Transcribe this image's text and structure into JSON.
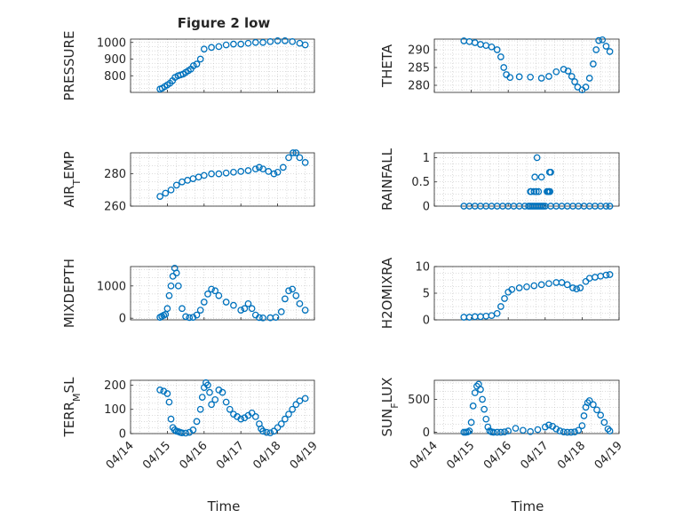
{
  "figure": {
    "title": "Figure 2 low",
    "xlabel": "Time",
    "marker_color": "#0072BD",
    "x_ticks": [
      "04/14",
      "04/15",
      "04/16",
      "04/17",
      "04/18",
      "04/19"
    ]
  },
  "chart_data": [
    {
      "type": "scatter",
      "ylabel": "PRESSURE",
      "title": "Figure 2 low",
      "xlim": [
        0,
        5
      ],
      "ylim": [
        700,
        1020
      ],
      "yticks": [
        800,
        900,
        1000
      ],
      "x": [
        0.8,
        0.86,
        0.93,
        1.0,
        1.07,
        1.14,
        1.21,
        1.29,
        1.36,
        1.43,
        1.5,
        1.57,
        1.64,
        1.71,
        1.8,
        1.9,
        2.0,
        2.2,
        2.4,
        2.6,
        2.8,
        3.0,
        3.2,
        3.4,
        3.6,
        3.8,
        4.0,
        4.2,
        4.4,
        4.6,
        4.75
      ],
      "y": [
        720,
        725,
        735,
        745,
        755,
        770,
        790,
        800,
        805,
        810,
        820,
        830,
        840,
        860,
        870,
        900,
        960,
        970,
        975,
        985,
        990,
        990,
        995,
        1000,
        1000,
        1005,
        1010,
        1010,
        1005,
        995,
        985
      ]
    },
    {
      "type": "scatter",
      "ylabel": "THETA",
      "xlim": [
        0,
        5
      ],
      "ylim": [
        278,
        293
      ],
      "yticks": [
        280,
        285,
        290
      ],
      "x": [
        0.8,
        0.95,
        1.1,
        1.25,
        1.4,
        1.55,
        1.7,
        1.8,
        1.88,
        1.95,
        2.05,
        2.3,
        2.6,
        2.9,
        3.1,
        3.3,
        3.5,
        3.62,
        3.72,
        3.8,
        3.88,
        4.0,
        4.1,
        4.2,
        4.3,
        4.38,
        4.45,
        4.55,
        4.65,
        4.75
      ],
      "y": [
        292.5,
        292.3,
        292,
        291.5,
        291.2,
        290.8,
        290,
        288,
        285,
        283,
        282.2,
        282.4,
        282.3,
        282,
        282.5,
        283.8,
        284.5,
        284,
        282.5,
        281,
        279.5,
        278.7,
        279.5,
        282,
        286,
        290,
        292.6,
        292.8,
        291,
        289.5
      ]
    },
    {
      "type": "scatter",
      "ylabel": "AIR_TEMP",
      "xlim": [
        0,
        5
      ],
      "ylim": [
        260,
        293
      ],
      "yticks": [
        260,
        280
      ],
      "x": [
        0.8,
        0.95,
        1.1,
        1.25,
        1.4,
        1.55,
        1.7,
        1.85,
        2.0,
        2.2,
        2.4,
        2.6,
        2.8,
        3.0,
        3.2,
        3.4,
        3.5,
        3.6,
        3.75,
        3.9,
        4.0,
        4.15,
        4.3,
        4.42,
        4.5,
        4.6,
        4.75
      ],
      "y": [
        266,
        268,
        270,
        273,
        275,
        276,
        277,
        278,
        279,
        280,
        280,
        280.5,
        281,
        281.5,
        282,
        283,
        284,
        283,
        281.5,
        280,
        281,
        284,
        290,
        293,
        293,
        290,
        287
      ]
    },
    {
      "type": "scatter",
      "ylabel": "RAINFALL",
      "xlim": [
        0,
        5
      ],
      "ylim": [
        0,
        1.1
      ],
      "yticks": [
        0,
        0.5,
        1
      ],
      "x": [
        0.8,
        0.95,
        1.1,
        1.25,
        1.4,
        1.55,
        1.7,
        1.85,
        2.0,
        2.15,
        2.3,
        2.45,
        2.55,
        2.6,
        2.65,
        2.7,
        2.75,
        2.8,
        2.85,
        2.9,
        2.95,
        3.0,
        3.15,
        3.3,
        3.45,
        3.6,
        3.75,
        3.9,
        4.05,
        4.2,
        4.35,
        4.5,
        4.65,
        4.75,
        2.6,
        2.7,
        2.72,
        2.78,
        2.9,
        3.05,
        3.1,
        3.12,
        3.15,
        2.62,
        2.76,
        2.82,
        3.08,
        3.13
      ],
      "y": [
        0,
        0,
        0,
        0,
        0,
        0,
        0,
        0,
        0,
        0,
        0,
        0,
        0,
        0,
        0,
        0,
        0,
        0,
        0,
        0,
        0,
        0,
        0,
        0,
        0,
        0,
        0,
        0,
        0,
        0,
        0,
        0,
        0,
        0,
        0.3,
        0.3,
        0.6,
        1.0,
        0.6,
        0.3,
        0.3,
        0.7,
        0.7,
        0.3,
        0.3,
        0.3,
        0.3,
        0.3
      ]
    },
    {
      "type": "scatter",
      "ylabel": "MIXDEPTH",
      "xlim": [
        0,
        5
      ],
      "ylim": [
        -50,
        1600
      ],
      "yticks": [
        0,
        1000
      ],
      "x": [
        0.8,
        0.85,
        0.9,
        0.95,
        1.0,
        1.05,
        1.1,
        1.15,
        1.2,
        1.25,
        1.3,
        1.4,
        1.5,
        1.6,
        1.7,
        1.8,
        1.9,
        2.0,
        2.1,
        2.2,
        2.3,
        2.4,
        2.6,
        2.8,
        3.0,
        3.1,
        3.2,
        3.3,
        3.4,
        3.5,
        3.6,
        3.8,
        3.95,
        4.1,
        4.2,
        4.3,
        4.4,
        4.5,
        4.6,
        4.75
      ],
      "y": [
        30,
        60,
        90,
        120,
        300,
        700,
        1000,
        1300,
        1550,
        1400,
        1000,
        300,
        50,
        20,
        30,
        100,
        250,
        500,
        750,
        900,
        850,
        700,
        500,
        400,
        250,
        300,
        450,
        300,
        100,
        20,
        10,
        15,
        30,
        200,
        600,
        850,
        900,
        700,
        450,
        250
      ]
    },
    {
      "type": "scatter",
      "ylabel": "H2OMIXRA",
      "xlim": [
        0,
        5
      ],
      "ylim": [
        0,
        10
      ],
      "yticks": [
        0,
        5,
        10
      ],
      "x": [
        0.8,
        0.95,
        1.1,
        1.25,
        1.4,
        1.55,
        1.7,
        1.8,
        1.9,
        2.0,
        2.1,
        2.3,
        2.5,
        2.7,
        2.9,
        3.1,
        3.3,
        3.45,
        3.6,
        3.75,
        3.85,
        3.95,
        4.1,
        4.2,
        4.35,
        4.5,
        4.65,
        4.75
      ],
      "y": [
        0.5,
        0.5,
        0.6,
        0.6,
        0.7,
        0.8,
        1.2,
        2.5,
        4.0,
        5.2,
        5.7,
        6.0,
        6.2,
        6.4,
        6.6,
        6.8,
        7.0,
        7.0,
        6.6,
        6.0,
        5.8,
        6.0,
        7.2,
        7.8,
        8.0,
        8.2,
        8.4,
        8.5
      ]
    },
    {
      "type": "scatter",
      "ylabel": "TERR_MSL",
      "xlim": [
        0,
        5
      ],
      "ylim": [
        0,
        220
      ],
      "yticks": [
        0,
        100,
        200
      ],
      "x": [
        0.8,
        0.9,
        1.0,
        1.05,
        1.1,
        1.15,
        1.2,
        1.25,
        1.3,
        1.35,
        1.4,
        1.5,
        1.6,
        1.7,
        1.8,
        1.9,
        1.95,
        2.0,
        2.05,
        2.1,
        2.15,
        2.2,
        2.3,
        2.4,
        2.5,
        2.6,
        2.7,
        2.8,
        2.9,
        3.0,
        3.1,
        3.2,
        3.3,
        3.4,
        3.5,
        3.55,
        3.6,
        3.7,
        3.8,
        3.9,
        4.0,
        4.1,
        4.2,
        4.3,
        4.4,
        4.5,
        4.6,
        4.75
      ],
      "y": [
        180,
        175,
        165,
        130,
        60,
        25,
        15,
        10,
        8,
        5,
        3,
        2,
        5,
        15,
        50,
        100,
        150,
        190,
        210,
        200,
        170,
        120,
        140,
        180,
        170,
        130,
        100,
        80,
        70,
        60,
        65,
        75,
        85,
        70,
        40,
        20,
        10,
        5,
        3,
        10,
        25,
        40,
        60,
        80,
        100,
        120,
        135,
        145
      ]
    },
    {
      "type": "scatter",
      "ylabel": "SUN_FLUX",
      "xlim": [
        0,
        5
      ],
      "ylim": [
        -20,
        790
      ],
      "yticks": [
        0,
        500
      ],
      "x": [
        0.8,
        0.85,
        0.9,
        0.95,
        1.0,
        1.05,
        1.1,
        1.15,
        1.2,
        1.25,
        1.3,
        1.35,
        1.4,
        1.45,
        1.5,
        1.55,
        1.6,
        1.7,
        1.8,
        1.9,
        2.0,
        2.2,
        2.4,
        2.6,
        2.8,
        3.0,
        3.1,
        3.2,
        3.3,
        3.4,
        3.5,
        3.6,
        3.7,
        3.8,
        3.9,
        4.0,
        4.05,
        4.1,
        4.15,
        4.2,
        4.3,
        4.4,
        4.5,
        4.6,
        4.7,
        4.75
      ],
      "y": [
        0,
        0,
        5,
        20,
        150,
        400,
        600,
        700,
        730,
        650,
        500,
        350,
        200,
        80,
        20,
        5,
        0,
        0,
        0,
        5,
        20,
        60,
        30,
        10,
        40,
        80,
        110,
        90,
        50,
        20,
        5,
        0,
        0,
        5,
        30,
        100,
        250,
        380,
        450,
        480,
        420,
        340,
        260,
        150,
        50,
        20
      ]
    }
  ]
}
